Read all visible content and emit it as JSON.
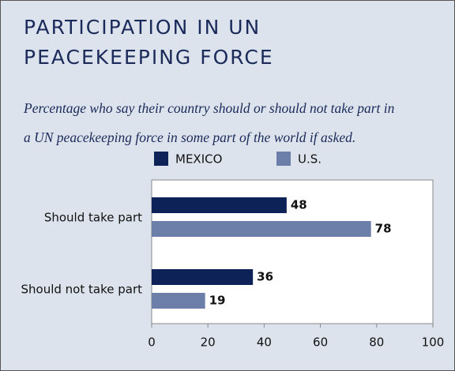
{
  "chart_data": {
    "type": "hbar",
    "title": [
      "PARTICIPATION IN UN",
      "PEACEKEEPING FORCE"
    ],
    "subtitle": [
      "Percentage who say their country should or should not take part in",
      "a UN peacekeeping force in some part of the world if asked."
    ],
    "categories": [
      "Should take part",
      "Should not take part"
    ],
    "series": [
      {
        "name": "MEXICO",
        "color": "#0d2358",
        "values": [
          48,
          36
        ]
      },
      {
        "name": "U.S.",
        "color": "#6b7fa8",
        "values": [
          78,
          19
        ]
      }
    ],
    "xlim": [
      0,
      100
    ],
    "xticks": [
      0,
      20,
      40,
      60,
      80,
      100
    ],
    "legend": "top"
  }
}
